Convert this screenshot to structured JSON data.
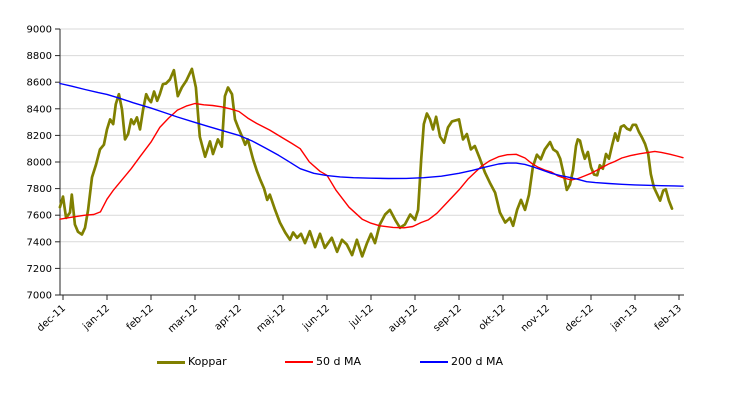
{
  "chart_data": {
    "type": "line",
    "title": "",
    "xlabel": "",
    "ylabel": "",
    "ylim": [
      7000,
      9000
    ],
    "y_step": 200,
    "y_tick_labels": [
      "7000",
      "7200",
      "7400",
      "7600",
      "7800",
      "8000",
      "8200",
      "8400",
      "8600",
      "8800",
      "9000"
    ],
    "x_tick_labels": [
      "dec-11",
      "jan-12",
      "feb-12",
      "mar-12",
      "apr-12",
      "maj-12",
      "jun-12",
      "jul-12",
      "aug-12",
      "sep-12",
      "okt-12",
      "nov-12",
      "dec-12",
      "jan-13",
      "feb-13"
    ],
    "x_unit": "months from dec-11",
    "xlim": [
      -0.07,
      14.12
    ],
    "grid": true,
    "grid_color": "#d9d9d9",
    "axis_color": "#262626",
    "legend_position": "bottom",
    "series": [
      {
        "name": "Koppar",
        "color": "#808000",
        "width": 2.7,
        "points": [
          [
            -0.07,
            7660
          ],
          [
            0.0,
            7740
          ],
          [
            0.07,
            7580
          ],
          [
            0.16,
            7620
          ],
          [
            0.2,
            7755
          ],
          [
            0.27,
            7530
          ],
          [
            0.34,
            7475
          ],
          [
            0.43,
            7455
          ],
          [
            0.5,
            7505
          ],
          [
            0.57,
            7640
          ],
          [
            0.66,
            7885
          ],
          [
            0.75,
            7980
          ],
          [
            0.84,
            8095
          ],
          [
            0.93,
            8130
          ],
          [
            1.0,
            8245
          ],
          [
            1.07,
            8320
          ],
          [
            1.14,
            8285
          ],
          [
            1.2,
            8435
          ],
          [
            1.27,
            8510
          ],
          [
            1.34,
            8395
          ],
          [
            1.41,
            8170
          ],
          [
            1.48,
            8210
          ],
          [
            1.55,
            8320
          ],
          [
            1.61,
            8285
          ],
          [
            1.68,
            8335
          ],
          [
            1.75,
            8245
          ],
          [
            1.82,
            8395
          ],
          [
            1.89,
            8510
          ],
          [
            1.95,
            8470
          ],
          [
            2.0,
            8450
          ],
          [
            2.07,
            8530
          ],
          [
            2.14,
            8460
          ],
          [
            2.2,
            8510
          ],
          [
            2.27,
            8585
          ],
          [
            2.34,
            8590
          ],
          [
            2.43,
            8620
          ],
          [
            2.52,
            8690
          ],
          [
            2.61,
            8495
          ],
          [
            2.7,
            8560
          ],
          [
            2.8,
            8610
          ],
          [
            2.93,
            8700
          ],
          [
            3.02,
            8560
          ],
          [
            3.11,
            8190
          ],
          [
            3.23,
            8040
          ],
          [
            3.34,
            8155
          ],
          [
            3.41,
            8060
          ],
          [
            3.52,
            8170
          ],
          [
            3.61,
            8115
          ],
          [
            3.68,
            8495
          ],
          [
            3.75,
            8560
          ],
          [
            3.84,
            8510
          ],
          [
            3.91,
            8320
          ],
          [
            3.98,
            8260
          ],
          [
            4.07,
            8190
          ],
          [
            4.14,
            8130
          ],
          [
            4.2,
            8170
          ],
          [
            4.32,
            8020
          ],
          [
            4.41,
            7930
          ],
          [
            4.48,
            7870
          ],
          [
            4.57,
            7800
          ],
          [
            4.64,
            7715
          ],
          [
            4.7,
            7755
          ],
          [
            4.82,
            7640
          ],
          [
            4.93,
            7545
          ],
          [
            5.05,
            7470
          ],
          [
            5.16,
            7415
          ],
          [
            5.23,
            7470
          ],
          [
            5.32,
            7430
          ],
          [
            5.41,
            7460
          ],
          [
            5.5,
            7390
          ],
          [
            5.61,
            7480
          ],
          [
            5.73,
            7360
          ],
          [
            5.84,
            7460
          ],
          [
            5.95,
            7355
          ],
          [
            6.11,
            7430
          ],
          [
            6.23,
            7325
          ],
          [
            6.34,
            7415
          ],
          [
            6.45,
            7380
          ],
          [
            6.57,
            7300
          ],
          [
            6.68,
            7415
          ],
          [
            6.8,
            7290
          ],
          [
            6.91,
            7390
          ],
          [
            7.0,
            7460
          ],
          [
            7.09,
            7390
          ],
          [
            7.2,
            7530
          ],
          [
            7.32,
            7605
          ],
          [
            7.43,
            7640
          ],
          [
            7.55,
            7565
          ],
          [
            7.66,
            7505
          ],
          [
            7.77,
            7530
          ],
          [
            7.89,
            7605
          ],
          [
            8.0,
            7565
          ],
          [
            8.07,
            7640
          ],
          [
            8.14,
            8020
          ],
          [
            8.2,
            8285
          ],
          [
            8.27,
            8365
          ],
          [
            8.34,
            8320
          ],
          [
            8.41,
            8245
          ],
          [
            8.48,
            8340
          ],
          [
            8.57,
            8190
          ],
          [
            8.66,
            8145
          ],
          [
            8.75,
            8260
          ],
          [
            8.84,
            8305
          ],
          [
            9.0,
            8320
          ],
          [
            9.09,
            8170
          ],
          [
            9.18,
            8210
          ],
          [
            9.27,
            8095
          ],
          [
            9.36,
            8120
          ],
          [
            9.48,
            8020
          ],
          [
            9.59,
            7920
          ],
          [
            9.7,
            7845
          ],
          [
            9.82,
            7770
          ],
          [
            9.93,
            7620
          ],
          [
            10.05,
            7545
          ],
          [
            10.16,
            7580
          ],
          [
            10.23,
            7520
          ],
          [
            10.32,
            7640
          ],
          [
            10.41,
            7715
          ],
          [
            10.5,
            7640
          ],
          [
            10.59,
            7755
          ],
          [
            10.68,
            7965
          ],
          [
            10.77,
            8055
          ],
          [
            10.86,
            8020
          ],
          [
            10.95,
            8095
          ],
          [
            11.07,
            8150
          ],
          [
            11.14,
            8095
          ],
          [
            11.23,
            8075
          ],
          [
            11.3,
            8025
          ],
          [
            11.39,
            7890
          ],
          [
            11.45,
            7790
          ],
          [
            11.52,
            7830
          ],
          [
            11.59,
            7935
          ],
          [
            11.66,
            8120
          ],
          [
            11.7,
            8170
          ],
          [
            11.75,
            8160
          ],
          [
            11.8,
            8090
          ],
          [
            11.86,
            8025
          ],
          [
            11.93,
            8075
          ],
          [
            12.0,
            7960
          ],
          [
            12.07,
            7905
          ],
          [
            12.14,
            7900
          ],
          [
            12.2,
            7975
          ],
          [
            12.27,
            7950
          ],
          [
            12.34,
            8060
          ],
          [
            12.41,
            8025
          ],
          [
            12.48,
            8125
          ],
          [
            12.55,
            8215
          ],
          [
            12.61,
            8160
          ],
          [
            12.68,
            8265
          ],
          [
            12.75,
            8275
          ],
          [
            12.82,
            8250
          ],
          [
            12.89,
            8240
          ],
          [
            12.95,
            8280
          ],
          [
            13.02,
            8280
          ],
          [
            13.09,
            8225
          ],
          [
            13.16,
            8185
          ],
          [
            13.23,
            8135
          ],
          [
            13.3,
            8060
          ],
          [
            13.36,
            7910
          ],
          [
            13.43,
            7810
          ],
          [
            13.5,
            7760
          ],
          [
            13.57,
            7710
          ],
          [
            13.64,
            7785
          ],
          [
            13.7,
            7795
          ],
          [
            13.77,
            7710
          ],
          [
            13.84,
            7650
          ]
        ]
      },
      {
        "name": "50 d MA",
        "color": "#ff0000",
        "width": 1.4,
        "points": [
          [
            -0.07,
            7570
          ],
          [
            0.2,
            7585
          ],
          [
            0.5,
            7600
          ],
          [
            0.7,
            7605
          ],
          [
            0.85,
            7625
          ],
          [
            1.0,
            7720
          ],
          [
            1.15,
            7790
          ],
          [
            1.35,
            7870
          ],
          [
            1.55,
            7950
          ],
          [
            1.75,
            8040
          ],
          [
            2.0,
            8150
          ],
          [
            2.2,
            8260
          ],
          [
            2.4,
            8330
          ],
          [
            2.6,
            8390
          ],
          [
            2.8,
            8420
          ],
          [
            3.0,
            8440
          ],
          [
            3.2,
            8430
          ],
          [
            3.4,
            8425
          ],
          [
            3.6,
            8415
          ],
          [
            3.8,
            8400
          ],
          [
            4.0,
            8380
          ],
          [
            4.2,
            8330
          ],
          [
            4.4,
            8290
          ],
          [
            4.7,
            8240
          ],
          [
            5.0,
            8180
          ],
          [
            5.2,
            8140
          ],
          [
            5.39,
            8100
          ],
          [
            5.6,
            8000
          ],
          [
            5.84,
            7930
          ],
          [
            6.0,
            7900
          ],
          [
            6.2,
            7790
          ],
          [
            6.5,
            7660
          ],
          [
            6.8,
            7570
          ],
          [
            7.0,
            7540
          ],
          [
            7.2,
            7520
          ],
          [
            7.5,
            7508
          ],
          [
            7.75,
            7505
          ],
          [
            7.95,
            7515
          ],
          [
            8.14,
            7545
          ],
          [
            8.3,
            7565
          ],
          [
            8.5,
            7615
          ],
          [
            8.7,
            7685
          ],
          [
            9.0,
            7790
          ],
          [
            9.2,
            7870
          ],
          [
            9.5,
            7965
          ],
          [
            9.7,
            8010
          ],
          [
            9.9,
            8040
          ],
          [
            10.1,
            8055
          ],
          [
            10.3,
            8058
          ],
          [
            10.5,
            8030
          ],
          [
            10.65,
            7990
          ],
          [
            10.8,
            7960
          ],
          [
            10.95,
            7940
          ],
          [
            11.1,
            7925
          ],
          [
            11.25,
            7895
          ],
          [
            11.4,
            7878
          ],
          [
            11.55,
            7865
          ],
          [
            11.7,
            7875
          ],
          [
            11.85,
            7895
          ],
          [
            12.0,
            7915
          ],
          [
            12.2,
            7950
          ],
          [
            12.4,
            7985
          ],
          [
            12.55,
            8005
          ],
          [
            12.7,
            8030
          ],
          [
            12.9,
            8048
          ],
          [
            13.1,
            8062
          ],
          [
            13.3,
            8072
          ],
          [
            13.45,
            8080
          ],
          [
            13.6,
            8072
          ],
          [
            13.8,
            8058
          ],
          [
            13.95,
            8045
          ],
          [
            14.09,
            8032
          ]
        ]
      },
      {
        "name": "200 d MA",
        "color": "#0000ff",
        "width": 1.4,
        "points": [
          [
            -0.07,
            8590
          ],
          [
            0.2,
            8570
          ],
          [
            0.5,
            8545
          ],
          [
            0.8,
            8522
          ],
          [
            1.0,
            8508
          ],
          [
            1.3,
            8478
          ],
          [
            1.6,
            8445
          ],
          [
            2.0,
            8405
          ],
          [
            2.3,
            8372
          ],
          [
            2.6,
            8338
          ],
          [
            3.0,
            8298
          ],
          [
            3.3,
            8268
          ],
          [
            3.6,
            8238
          ],
          [
            4.0,
            8200
          ],
          [
            4.3,
            8158
          ],
          [
            4.6,
            8105
          ],
          [
            4.9,
            8050
          ],
          [
            5.1,
            8010
          ],
          [
            5.39,
            7950
          ],
          [
            5.7,
            7915
          ],
          [
            6.0,
            7898
          ],
          [
            6.3,
            7888
          ],
          [
            6.6,
            7882
          ],
          [
            7.0,
            7878
          ],
          [
            7.4,
            7876
          ],
          [
            7.8,
            7877
          ],
          [
            8.2,
            7882
          ],
          [
            8.6,
            7893
          ],
          [
            9.0,
            7915
          ],
          [
            9.3,
            7937
          ],
          [
            9.6,
            7962
          ],
          [
            9.9,
            7985
          ],
          [
            10.1,
            7992
          ],
          [
            10.3,
            7992
          ],
          [
            10.5,
            7982
          ],
          [
            10.7,
            7962
          ],
          [
            10.9,
            7938
          ],
          [
            11.1,
            7915
          ],
          [
            11.3,
            7898
          ],
          [
            11.5,
            7885
          ],
          [
            11.7,
            7870
          ],
          [
            11.9,
            7852
          ],
          [
            12.1,
            7845
          ],
          [
            12.4,
            7838
          ],
          [
            12.7,
            7832
          ],
          [
            13.0,
            7828
          ],
          [
            13.3,
            7825
          ],
          [
            13.6,
            7822
          ],
          [
            13.9,
            7820
          ],
          [
            14.09,
            7818
          ]
        ]
      }
    ]
  }
}
